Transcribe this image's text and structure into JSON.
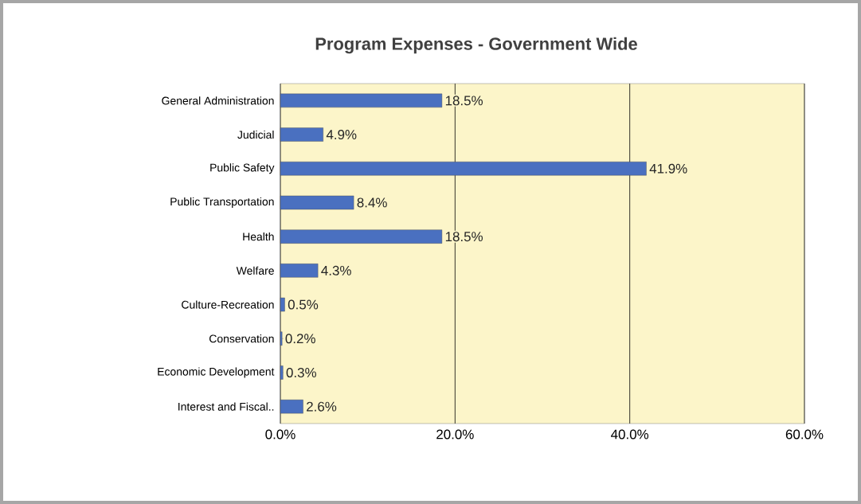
{
  "chart_data": {
    "type": "bar",
    "orientation": "horizontal",
    "title": "Program Expenses - Government Wide",
    "categories": [
      "General Administration",
      "Judicial",
      "Public Safety",
      "Public Transportation",
      "Health",
      "Welfare",
      "Culture-Recreation",
      "Conservation",
      "Economic Development",
      "Interest and Fiscal.."
    ],
    "values": [
      18.5,
      4.9,
      41.9,
      8.4,
      18.5,
      4.3,
      0.5,
      0.2,
      0.3,
      2.6
    ],
    "value_labels": [
      "18.5%",
      "4.9%",
      "41.9%",
      "8.4%",
      "18.5%",
      "4.3%",
      "0.5%",
      "0.2%",
      "0.3%",
      "2.6%"
    ],
    "color": "#4a70c0",
    "xlim": [
      0,
      60
    ],
    "xticks": [
      {
        "value": 0,
        "label": "0.0%"
      },
      {
        "value": 20,
        "label": "20.0%"
      },
      {
        "value": 40,
        "label": "40.0%"
      },
      {
        "value": 60,
        "label": "60.0%"
      }
    ],
    "grid": "x"
  }
}
